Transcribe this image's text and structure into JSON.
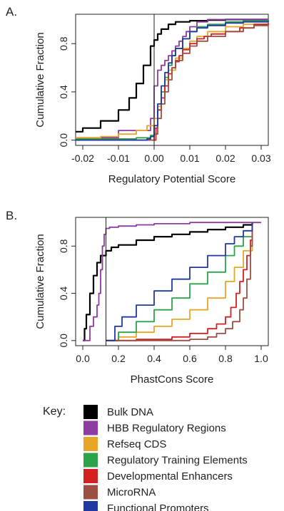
{
  "chart_data": [
    {
      "panel_label": "A.",
      "type": "line",
      "subtype": "cumulative distribution (step/ECDF)",
      "xlabel": "Regulatory Potential Score",
      "ylabel": "Cumulative Fraction",
      "xlim": [
        -0.022,
        0.032
      ],
      "ylim": [
        0.0,
        1.0
      ],
      "x_ticks": [
        -0.02,
        -0.01,
        0.0,
        0.01,
        0.02,
        0.03
      ],
      "x_tick_labels": [
        "-0.02",
        "-0.01",
        "0.00",
        "0.01",
        "0.02",
        "0.03"
      ],
      "y_ticks": [
        0.0,
        0.4,
        0.8
      ],
      "y_tick_labels": [
        "0.0",
        "0.4",
        "0.8"
      ],
      "reference_line_x": 0.0,
      "grid": false,
      "series": [
        {
          "name": "Bulk DNA",
          "color": "#000000",
          "x": [
            -0.022,
            -0.02,
            -0.015,
            -0.01,
            -0.007,
            -0.005,
            -0.003,
            -0.001,
            0.0,
            0.001,
            0.002,
            0.004,
            0.006,
            0.01,
            0.015,
            0.02,
            0.032
          ],
          "y": [
            0.07,
            0.1,
            0.16,
            0.25,
            0.35,
            0.47,
            0.62,
            0.78,
            0.83,
            0.88,
            0.92,
            0.96,
            0.98,
            0.99,
            0.995,
            1.0,
            1.0
          ]
        },
        {
          "name": "HBB Regulatory Regions",
          "color": "#8e3aa0",
          "x": [
            -0.022,
            -0.01,
            -0.001,
            0.0,
            0.001,
            0.002,
            0.003,
            0.004,
            0.005,
            0.006,
            0.007,
            0.008,
            0.009,
            0.01,
            0.012,
            0.015,
            0.018,
            0.032
          ],
          "y": [
            0.02,
            0.08,
            0.18,
            0.45,
            0.58,
            0.62,
            0.66,
            0.7,
            0.74,
            0.78,
            0.82,
            0.86,
            0.9,
            0.94,
            0.98,
            1.0,
            1.0,
            1.0
          ]
        },
        {
          "name": "Refseq CDS",
          "color": "#e8a628",
          "x": [
            -0.022,
            -0.015,
            -0.01,
            -0.005,
            -0.002,
            0.0,
            0.001,
            0.002,
            0.003,
            0.004,
            0.006,
            0.008,
            0.01,
            0.012,
            0.015,
            0.02,
            0.025,
            0.032
          ],
          "y": [
            0.02,
            0.03,
            0.05,
            0.08,
            0.12,
            0.18,
            0.28,
            0.4,
            0.5,
            0.58,
            0.68,
            0.76,
            0.82,
            0.86,
            0.9,
            0.94,
            0.96,
            0.98
          ]
        },
        {
          "name": "Regulatory Training Elements",
          "color": "#2ca34a",
          "x": [
            -0.022,
            -0.005,
            -0.001,
            0.0,
            0.001,
            0.002,
            0.003,
            0.004,
            0.005,
            0.006,
            0.008,
            0.01,
            0.012,
            0.015,
            0.02,
            0.025,
            0.032
          ],
          "y": [
            0.01,
            0.02,
            0.04,
            0.1,
            0.25,
            0.4,
            0.52,
            0.62,
            0.7,
            0.76,
            0.84,
            0.9,
            0.94,
            0.96,
            0.98,
            0.99,
            1.0
          ]
        },
        {
          "name": "Developmental Enhancers",
          "color": "#d42020",
          "x": [
            -0.022,
            0.0,
            0.0005,
            0.001,
            0.002,
            0.003,
            0.004,
            0.005,
            0.006,
            0.007,
            0.008,
            0.01,
            0.012,
            0.014,
            0.016,
            0.02,
            0.024,
            0.028,
            0.032
          ],
          "y": [
            0.0,
            0.0,
            0.1,
            0.25,
            0.35,
            0.45,
            0.55,
            0.6,
            0.65,
            0.7,
            0.75,
            0.8,
            0.84,
            0.86,
            0.88,
            0.9,
            0.93,
            0.96,
            0.97
          ]
        },
        {
          "name": "MicroRNA",
          "color": "#9e4f44",
          "x": [
            -0.022,
            -0.001,
            0.0,
            0.001,
            0.002,
            0.003,
            0.004,
            0.005,
            0.006,
            0.008,
            0.01,
            0.012,
            0.015,
            0.02,
            0.025,
            0.028,
            0.032
          ],
          "y": [
            0.0,
            0.0,
            0.05,
            0.18,
            0.3,
            0.4,
            0.5,
            0.6,
            0.66,
            0.72,
            0.78,
            0.82,
            0.86,
            0.9,
            0.93,
            0.95,
            0.96
          ]
        },
        {
          "name": "Functional Promoters",
          "color": "#2138a3",
          "x": [
            -0.022,
            -0.002,
            -0.001,
            0.0,
            0.001,
            0.002,
            0.003,
            0.004,
            0.005,
            0.006,
            0.008,
            0.01,
            0.012,
            0.015,
            0.02,
            0.025,
            0.032
          ],
          "y": [
            0.0,
            0.01,
            0.03,
            0.12,
            0.3,
            0.45,
            0.56,
            0.64,
            0.7,
            0.76,
            0.84,
            0.9,
            0.93,
            0.95,
            0.97,
            0.98,
            0.99
          ]
        }
      ]
    },
    {
      "panel_label": "B.",
      "type": "line",
      "subtype": "cumulative distribution (step/ECDF)",
      "xlabel": "PhastCons Score",
      "ylabel": "Cumulative Fraction",
      "xlim": [
        -0.04,
        1.04
      ],
      "ylim": [
        0.0,
        1.0
      ],
      "x_ticks": [
        0.0,
        0.2,
        0.4,
        0.6,
        0.8,
        1.0
      ],
      "x_tick_labels": [
        "0.0",
        "0.2",
        "0.4",
        "0.6",
        "0.8",
        "1.0"
      ],
      "y_ticks": [
        0.0,
        0.4,
        0.8
      ],
      "y_tick_labels": [
        "0.0",
        "0.4",
        "0.8"
      ],
      "reference_line_x": 0.13,
      "grid": false,
      "series": [
        {
          "name": "Bulk DNA",
          "color": "#000000",
          "x": [
            0.0,
            0.01,
            0.02,
            0.04,
            0.06,
            0.08,
            0.1,
            0.13,
            0.16,
            0.2,
            0.3,
            0.4,
            0.5,
            0.6,
            0.7,
            0.8,
            0.9,
            0.95
          ],
          "y": [
            0.0,
            0.1,
            0.22,
            0.4,
            0.55,
            0.66,
            0.72,
            0.76,
            0.79,
            0.81,
            0.85,
            0.88,
            0.9,
            0.92,
            0.94,
            0.96,
            0.98,
            1.0
          ]
        },
        {
          "name": "HBB Regulatory Regions",
          "color": "#8e3aa0",
          "x": [
            0.0,
            0.02,
            0.04,
            0.06,
            0.08,
            0.09,
            0.1,
            0.11,
            0.12,
            0.13,
            0.15,
            0.2,
            0.3,
            0.4,
            0.6,
            0.8,
            0.9,
            1.0
          ],
          "y": [
            0.0,
            0.0,
            0.12,
            0.2,
            0.3,
            0.4,
            0.6,
            0.8,
            0.9,
            0.95,
            0.96,
            0.97,
            0.98,
            0.99,
            1.0,
            1.0,
            1.0,
            1.0
          ]
        },
        {
          "name": "Refseq CDS",
          "color": "#e8a628",
          "x": [
            0.13,
            0.2,
            0.3,
            0.4,
            0.5,
            0.6,
            0.7,
            0.8,
            0.85,
            0.9,
            0.95
          ],
          "y": [
            0.0,
            0.03,
            0.07,
            0.12,
            0.18,
            0.26,
            0.36,
            0.5,
            0.62,
            0.76,
            1.0
          ]
        },
        {
          "name": "Regulatory Training Elements",
          "color": "#2ca34a",
          "x": [
            0.13,
            0.2,
            0.3,
            0.4,
            0.5,
            0.6,
            0.7,
            0.8,
            0.85,
            0.9,
            0.95
          ],
          "y": [
            0.0,
            0.07,
            0.16,
            0.26,
            0.36,
            0.48,
            0.58,
            0.72,
            0.8,
            0.88,
            1.0
          ]
        },
        {
          "name": "Developmental Enhancers",
          "color": "#d42020",
          "x": [
            0.13,
            0.3,
            0.5,
            0.6,
            0.7,
            0.75,
            0.8,
            0.83,
            0.86,
            0.88,
            0.9,
            0.92,
            0.94,
            0.95
          ],
          "y": [
            0.0,
            0.01,
            0.03,
            0.06,
            0.1,
            0.14,
            0.2,
            0.28,
            0.4,
            0.5,
            0.6,
            0.72,
            0.85,
            1.0
          ]
        },
        {
          "name": "MicroRNA",
          "color": "#9e4f44",
          "x": [
            0.13,
            0.4,
            0.6,
            0.7,
            0.75,
            0.8,
            0.84,
            0.88,
            0.9,
            0.92,
            0.94,
            0.95
          ],
          "y": [
            0.0,
            0.0,
            0.01,
            0.03,
            0.06,
            0.1,
            0.16,
            0.26,
            0.36,
            0.52,
            0.8,
            1.0
          ]
        },
        {
          "name": "Functional Promoters",
          "color": "#2138a3",
          "x": [
            0.13,
            0.18,
            0.22,
            0.3,
            0.4,
            0.5,
            0.6,
            0.7,
            0.8,
            0.85,
            0.9,
            0.95
          ],
          "y": [
            0.0,
            0.12,
            0.2,
            0.3,
            0.42,
            0.52,
            0.62,
            0.72,
            0.82,
            0.88,
            0.93,
            1.0
          ]
        }
      ]
    }
  ],
  "key": {
    "title": "Key:",
    "items": [
      {
        "label": "Bulk DNA",
        "color": "#000000"
      },
      {
        "label": "HBB Regulatory Regions",
        "color": "#8e3aa0"
      },
      {
        "label": "Refseq CDS",
        "color": "#e8a628"
      },
      {
        "label": "Regulatory Training Elements",
        "color": "#2ca34a"
      },
      {
        "label": "Developmental Enhancers",
        "color": "#d42020"
      },
      {
        "label": "MicroRNA",
        "color": "#9e4f44"
      },
      {
        "label": "Functional Promoters",
        "color": "#2138a3"
      }
    ]
  }
}
